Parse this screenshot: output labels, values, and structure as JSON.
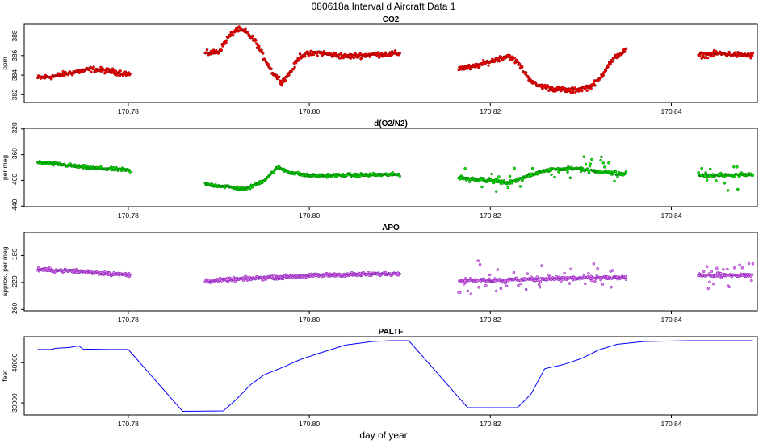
{
  "figure": {
    "title": "080618a   Interval d Aircraft Data 1",
    "xlabel": "day of year"
  },
  "chart_data": [
    {
      "type": "scatter",
      "title": "CO2",
      "ylabel": "ppm",
      "xlabel": "",
      "xlim": [
        170.7685,
        170.8495
      ],
      "ylim": [
        381.2,
        389.2
      ],
      "xticks": [
        170.78,
        170.8,
        170.82,
        170.84
      ],
      "xtick_labels": [
        "170.78",
        "170.80",
        "170.82",
        "170.84"
      ],
      "yticks": [
        382,
        384,
        386,
        388
      ],
      "ytick_labels": [
        "382",
        "384",
        "386",
        "388"
      ],
      "grid": false,
      "color": "#ff0000",
      "edge_color": "#8b0000",
      "segments": [
        {
          "x": [
            170.77,
            170.772,
            170.774,
            170.776,
            170.778,
            170.7802
          ],
          "y": [
            383.7,
            383.9,
            384.3,
            384.6,
            384.4,
            384.1
          ]
        },
        {
          "x": [
            170.7885,
            170.79,
            170.791,
            170.792,
            170.793,
            170.794,
            170.795,
            170.796,
            170.797,
            170.798,
            170.799,
            170.801,
            170.804,
            170.807,
            170.81
          ],
          "y": [
            386.2,
            386.4,
            387.8,
            388.7,
            388.4,
            387.5,
            385.8,
            384.2,
            383.3,
            384.4,
            386.0,
            386.3,
            385.9,
            386.1,
            386.2
          ]
        },
        {
          "x": [
            170.8165,
            170.818,
            170.82,
            170.822,
            170.823,
            170.824,
            170.825,
            170.827,
            170.829,
            170.831,
            170.832,
            170.833,
            170.834,
            170.835
          ],
          "y": [
            384.7,
            384.8,
            385.4,
            386.0,
            385.3,
            384.0,
            383.0,
            382.6,
            382.4,
            382.8,
            383.5,
            385.0,
            386.0,
            386.5
          ]
        },
        {
          "x": [
            170.843,
            170.845,
            170.847,
            170.849
          ],
          "y": [
            386.0,
            386.2,
            386.1,
            386.0
          ]
        }
      ]
    },
    {
      "type": "scatter",
      "title": "d(O2/N2)",
      "ylabel": "per meg",
      "xlabel": "",
      "xlim": [
        170.7685,
        170.8495
      ],
      "ylim": [
        -441,
        -319
      ],
      "xticks": [
        170.78,
        170.8,
        170.82,
        170.84
      ],
      "xtick_labels": [
        "170.78",
        "170.80",
        "170.82",
        "170.84"
      ],
      "yticks": [
        -440,
        -400,
        -360,
        -320
      ],
      "ytick_labels": [
        "-440",
        "-400",
        "-360",
        "-320"
      ],
      "grid": false,
      "color": "#00ee00",
      "edge_color": "#006400",
      "segments": [
        {
          "x": [
            170.77,
            170.773,
            170.776,
            170.779,
            170.7802
          ],
          "y": [
            -372,
            -376,
            -381,
            -383,
            -385
          ]
        },
        {
          "x": [
            170.7885,
            170.791,
            170.793,
            170.795,
            170.7965,
            170.798,
            170.8,
            170.804,
            170.81
          ],
          "y": [
            -406,
            -410,
            -414,
            -400,
            -380,
            -388,
            -393,
            -392,
            -391
          ]
        },
        {
          "x": [
            170.8165,
            170.82,
            170.822,
            170.824,
            170.826,
            170.829,
            170.832,
            170.835
          ],
          "y": [
            -396,
            -400,
            -404,
            -394,
            -384,
            -381,
            -386,
            -390
          ]
        },
        {
          "x": [
            170.843,
            170.846,
            170.849
          ],
          "y": [
            -393,
            -392,
            -391
          ]
        }
      ]
    },
    {
      "type": "scatter",
      "title": "APO",
      "ylabel": "approx. per meg",
      "xlabel": "",
      "xlim": [
        170.7685,
        170.8495
      ],
      "ylim": [
        -262,
        -146
      ],
      "xticks": [
        170.78,
        170.8,
        170.82,
        170.84
      ],
      "xtick_labels": [
        "170.78",
        "170.80",
        "170.82",
        "170.84"
      ],
      "yticks": [
        -260,
        -220,
        -180
      ],
      "ytick_labels": [
        "-260",
        "-220",
        "-180"
      ],
      "grid": false,
      "color": "#ee82ee",
      "edge_color": "#6a0dad",
      "segments": [
        {
          "x": [
            170.77,
            170.774,
            170.777,
            170.7802
          ],
          "y": [
            -201,
            -203,
            -206,
            -209
          ]
        },
        {
          "x": [
            170.7885,
            170.795,
            170.802,
            170.81
          ],
          "y": [
            -218,
            -213,
            -209,
            -207
          ]
        },
        {
          "x": [
            170.8165,
            170.822,
            170.828,
            170.835
          ],
          "y": [
            -217,
            -216,
            -214,
            -213
          ]
        },
        {
          "x": [
            170.843,
            170.846,
            170.849
          ],
          "y": [
            -209,
            -210,
            -209
          ]
        }
      ]
    },
    {
      "type": "line",
      "title": "PALTF",
      "ylabel": "feet",
      "xlabel": "day of year",
      "xlim": [
        170.7685,
        170.8495
      ],
      "ylim": [
        27000,
        46500
      ],
      "xticks": [
        170.78,
        170.8,
        170.82,
        170.84
      ],
      "xtick_labels": [
        "170.78",
        "170.80",
        "170.82",
        "170.84"
      ],
      "yticks": [
        30000,
        40000
      ],
      "ytick_labels": [
        "30000",
        "40000"
      ],
      "grid": false,
      "color": "#0000ff",
      "x": [
        170.77,
        170.7715,
        170.772,
        170.7735,
        170.7745,
        170.775,
        170.778,
        170.78,
        170.786,
        170.7905,
        170.792,
        170.7935,
        170.795,
        170.797,
        170.799,
        170.801,
        170.804,
        170.807,
        170.809,
        170.811,
        170.8175,
        170.823,
        170.8245,
        170.826,
        170.828,
        170.83,
        170.832,
        170.834,
        170.837,
        170.842,
        170.849
      ],
      "y": [
        43300,
        43300,
        43600,
        43800,
        44200,
        43400,
        43300,
        43300,
        27900,
        28000,
        31000,
        34500,
        37000,
        38800,
        40800,
        42300,
        44400,
        45300,
        45500,
        45500,
        28800,
        28800,
        32200,
        38500,
        39500,
        41000,
        43200,
        44600,
        45300,
        45500,
        45500
      ]
    }
  ]
}
